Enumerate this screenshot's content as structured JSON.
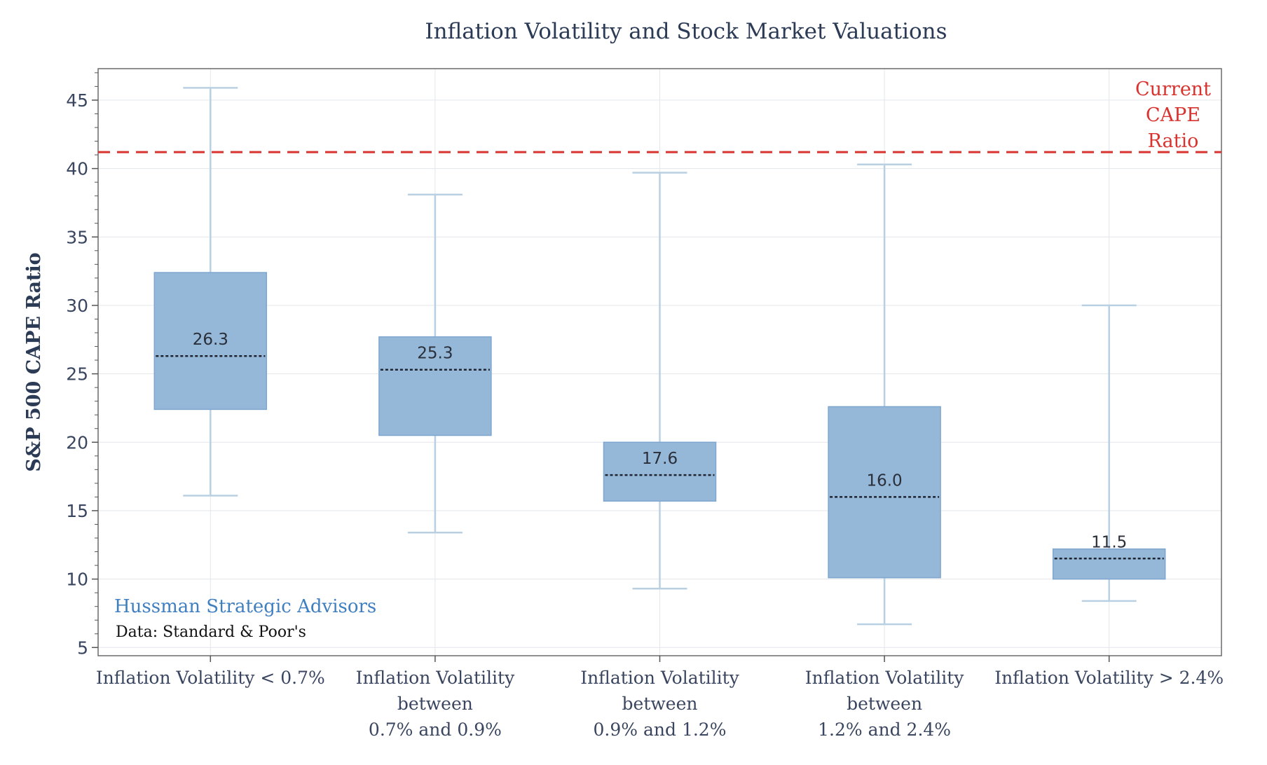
{
  "chart_data": {
    "type": "box",
    "title": "Inflation Volatility and Stock Market Valuations",
    "ylabel": "S&P 500 CAPE Ratio",
    "xlabel": "",
    "ylim": [
      4.4,
      47.3
    ],
    "yticks": [
      5,
      10,
      15,
      20,
      25,
      30,
      35,
      40,
      45
    ],
    "grid": true,
    "colors": {
      "box_fill": "#95b7d8",
      "box_edge": "#7ea6cf",
      "whisker": "#b9d0e3",
      "median": "#1f2430",
      "reference": "#d8332f",
      "grid": "#e3e6ea",
      "axis": "#555555"
    },
    "categories": [
      [
        "Inflation Volatility < 0.7%"
      ],
      [
        "Inflation Volatility",
        "between",
        "0.7% and 0.9%"
      ],
      [
        "Inflation Volatility",
        "between",
        "0.9% and 1.2%"
      ],
      [
        "Inflation Volatility",
        "between",
        "1.2% and 2.4%"
      ],
      [
        "Inflation Volatility > 2.4%"
      ]
    ],
    "boxes": [
      {
        "whisker_low": 16.1,
        "q1": 22.4,
        "median": 26.3,
        "q3": 32.4,
        "whisker_high": 45.9,
        "label": "26.3"
      },
      {
        "whisker_low": 13.4,
        "q1": 20.5,
        "median": 25.3,
        "q3": 27.7,
        "whisker_high": 38.1,
        "label": "25.3"
      },
      {
        "whisker_low": 9.3,
        "q1": 15.7,
        "median": 17.6,
        "q3": 20.0,
        "whisker_high": 39.7,
        "label": "17.6"
      },
      {
        "whisker_low": 6.7,
        "q1": 10.1,
        "median": 16.0,
        "q3": 22.6,
        "whisker_high": 40.3,
        "label": "16.0"
      },
      {
        "whisker_low": 8.4,
        "q1": 10.0,
        "median": 11.5,
        "q3": 12.2,
        "whisker_high": 30.0,
        "label": "11.5"
      }
    ],
    "reference_line": {
      "value": 41.2,
      "label": [
        "Current",
        "CAPE",
        "Ratio"
      ]
    },
    "annotations": {
      "brand": "Hussman Strategic Advisors",
      "source": "Data: Standard & Poor's"
    }
  }
}
